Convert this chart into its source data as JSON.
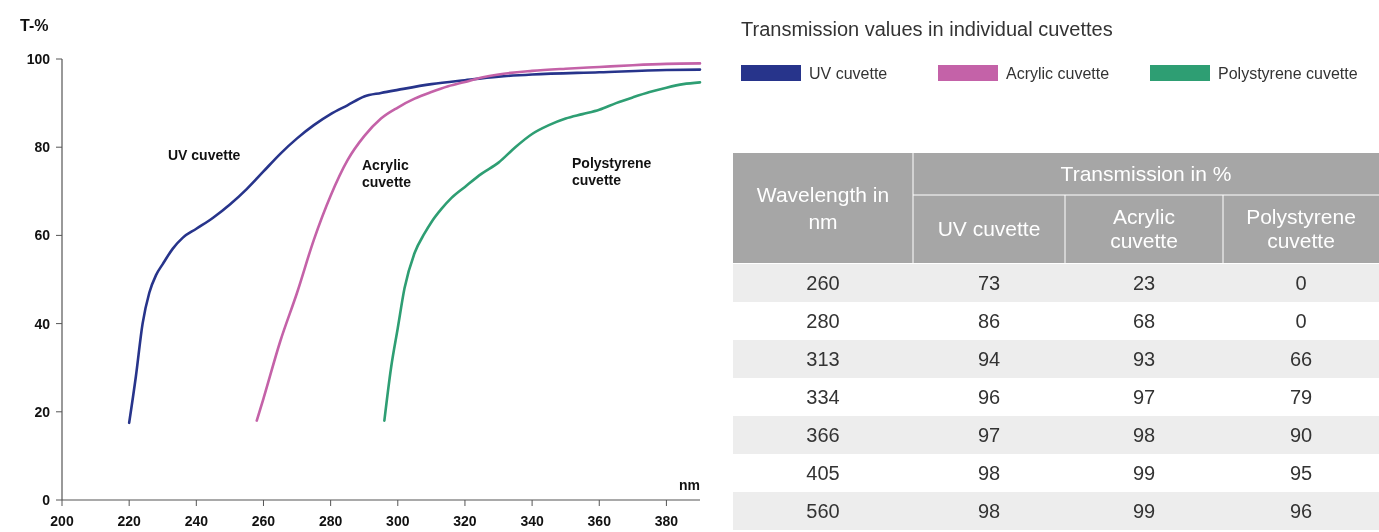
{
  "chart_data": [
    {
      "type": "line",
      "legend": "top right",
      "xlabel": "nm",
      "ylabel": "T-%",
      "xlim": [
        200,
        390
      ],
      "xticks": [
        200,
        220,
        240,
        260,
        280,
        300,
        320,
        340,
        360,
        380
      ],
      "ylim": [
        0,
        100
      ],
      "yticks": [
        0,
        20,
        40,
        60,
        80,
        100
      ],
      "grid": false,
      "marker": "none",
      "line_style": "solid",
      "series": [
        {
          "name": "UV cuvette",
          "color": "#27348b",
          "x": [
            220,
            222,
            224,
            226,
            228,
            230,
            233,
            236,
            240,
            245,
            250,
            255,
            260,
            265,
            270,
            275,
            280,
            285,
            290,
            295,
            300,
            310,
            320,
            330,
            340,
            360,
            380,
            390
          ],
          "values": [
            17.5,
            28,
            40,
            47,
            51,
            53.5,
            57,
            59.5,
            61.5,
            64,
            67,
            70.5,
            74.5,
            78.5,
            82,
            85,
            87.5,
            89.5,
            91.5,
            92.3,
            93,
            94.3,
            95.2,
            96,
            96.5,
            97,
            97.5,
            97.6
          ]
        },
        {
          "name": "Acrylic cuvette",
          "color": "#c462a8",
          "x": [
            258,
            260,
            265,
            270,
            275,
            280,
            285,
            290,
            295,
            300,
            305,
            310,
            315,
            320,
            325,
            330,
            340,
            350,
            360,
            370,
            380,
            390
          ],
          "values": [
            18,
            23,
            36,
            47,
            59,
            69,
            77,
            82.5,
            86.5,
            89,
            91,
            92.5,
            93.8,
            94.8,
            95.8,
            96.5,
            97.3,
            97.8,
            98.2,
            98.6,
            98.9,
            99
          ]
        },
        {
          "name": "Polystyrene cuvette",
          "color": "#2e9e73",
          "x": [
            296,
            298,
            300,
            302,
            305,
            308,
            310,
            313,
            316,
            320,
            325,
            330,
            335,
            340,
            345,
            350,
            355,
            360,
            365,
            370,
            375,
            380,
            385,
            390
          ],
          "values": [
            18,
            30,
            39,
            48,
            56,
            60.5,
            63,
            66,
            68.5,
            71,
            74,
            76.5,
            80,
            83,
            85,
            86.5,
            87.5,
            88.5,
            90,
            91.3,
            92.5,
            93.5,
            94.3,
            94.7
          ]
        }
      ]
    },
    {
      "type": "other",
      "title": "Transmission values in individual cuvettes",
      "xlabel": "Wavelength in nm",
      "ylabel": "Transmission in %",
      "data_labels": true,
      "categories": [
        "260",
        "280",
        "313",
        "334",
        "366",
        "405",
        "560"
      ],
      "series": [
        {
          "name": "UV cuvette",
          "values": [
            73,
            86,
            94,
            96,
            97,
            98,
            98
          ]
        },
        {
          "name": "Acrylic cuvette",
          "values": [
            23,
            68,
            93,
            97,
            98,
            99,
            99
          ]
        },
        {
          "name": "Polystyrene cuvette",
          "values": [
            0,
            0,
            66,
            79,
            90,
            95,
            96
          ]
        }
      ]
    }
  ]
}
